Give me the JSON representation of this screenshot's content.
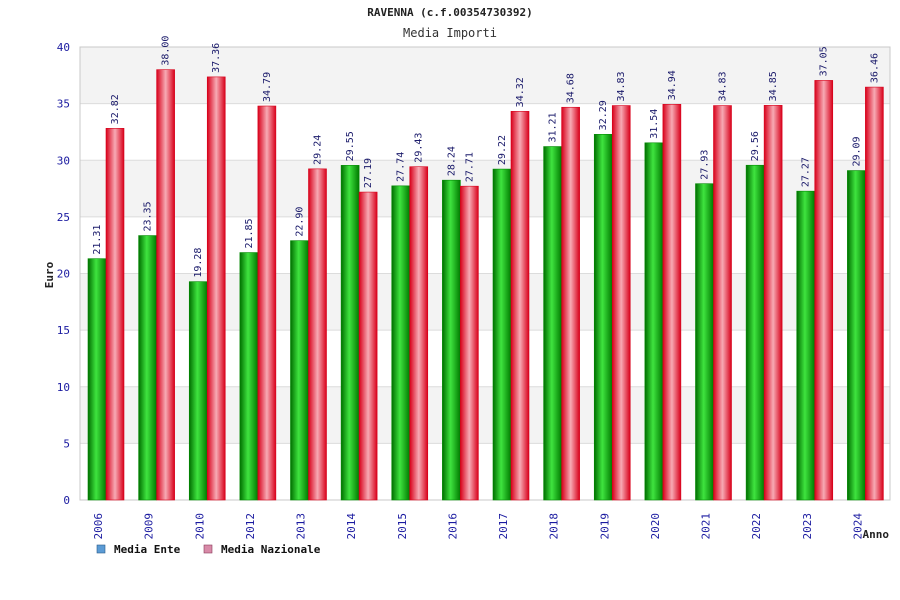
{
  "chart_data": {
    "type": "bar",
    "title": "RAVENNA (c.f.00354730392)",
    "subtitle": "Media Importi",
    "ylabel": "Euro",
    "xlabel": "Anno",
    "ylim": [
      0,
      40
    ],
    "yticks": [
      0,
      5,
      10,
      15,
      20,
      25,
      30,
      35,
      40
    ],
    "categories": [
      "2006",
      "2009",
      "2010",
      "2012",
      "2013",
      "2014",
      "2015",
      "2016",
      "2017",
      "2018",
      "2019",
      "2020",
      "2021",
      "2022",
      "2023",
      "2024"
    ],
    "series": [
      {
        "name": "Media Ente",
        "values": [
          21.31,
          23.35,
          19.28,
          21.85,
          22.9,
          29.55,
          27.74,
          28.24,
          29.22,
          31.21,
          32.29,
          31.54,
          27.93,
          29.56,
          27.27,
          29.09
        ],
        "labels": [
          "21.31",
          "23.35",
          "19.28",
          "21.85",
          "22.90",
          "29.55",
          "27.74",
          "28.24",
          "29.22",
          "31.21",
          "32.29",
          "31.54",
          "27.93",
          "29.56",
          "27.27",
          "29.09"
        ]
      },
      {
        "name": "Media Nazionale",
        "values": [
          32.82,
          38.0,
          37.36,
          34.79,
          29.24,
          27.19,
          29.43,
          27.71,
          34.32,
          34.68,
          34.83,
          34.94,
          34.83,
          34.85,
          37.05,
          36.46
        ],
        "labels": [
          "32.82",
          "38.00",
          "37.36",
          "34.79",
          "29.24",
          "27.19",
          "29.43",
          "27.71",
          "34.32",
          "34.68",
          "34.83",
          "34.94",
          "34.83",
          "34.85",
          "37.05",
          "36.46"
        ]
      }
    ],
    "legend": [
      "Media Ente",
      "Media Nazionale"
    ],
    "legend_position": "bottom-left",
    "grid": true
  },
  "colors": {
    "ente_dark": "#008a00",
    "ente_light": "#3fe43f",
    "naz_dark": "#d8001a",
    "naz_light": "#f7aab4",
    "band": "#f3f3f3",
    "grid": "#dcdcdc",
    "legend_ente": "#5b9bd5",
    "legend_naz": "#d88aa8"
  }
}
